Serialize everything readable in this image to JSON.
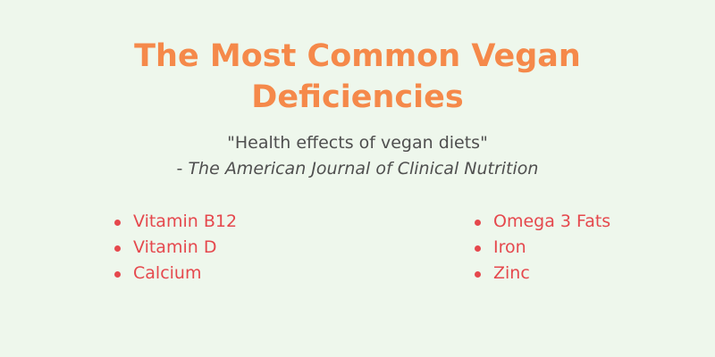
{
  "title": {
    "line1": "The Most Common Vegan",
    "line2": "Deficiencies"
  },
  "citation": {
    "quote": "\"Health effects of vegan diets\"",
    "prefix": "- ",
    "source": "The American Journal of Clinical Nutrition"
  },
  "colors": {
    "background": "#eef7ec",
    "title": "#f5894a",
    "list_text": "#e5484d",
    "body_text": "#4f4f4f"
  },
  "deficiencies": {
    "left": [
      "Vitamin B12",
      "Vitamin D",
      "Calcium"
    ],
    "right": [
      "Omega 3 Fats",
      "Iron",
      "Zinc"
    ]
  }
}
